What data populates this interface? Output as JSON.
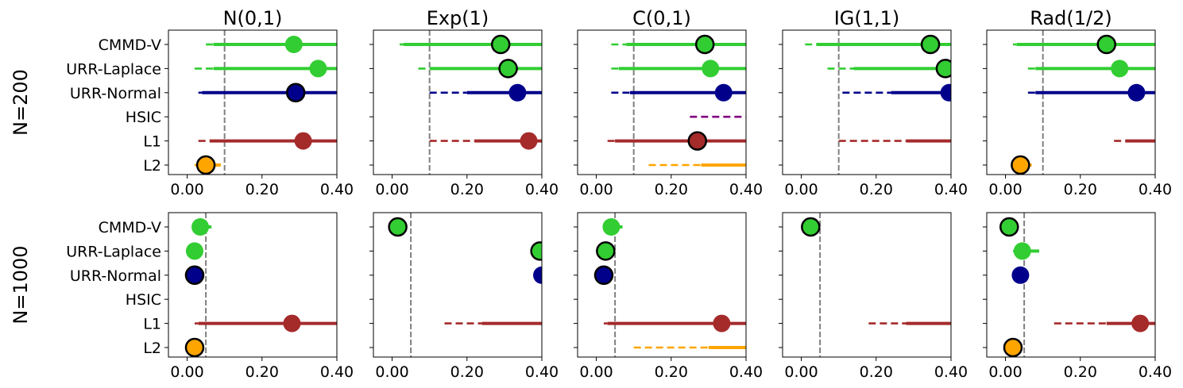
{
  "chart_data": {
    "type": "scatter",
    "layout": "grid 2 rows x 5 columns, shared x axis range per panel",
    "column_titles": [
      "N(0,1)",
      "Exp(1)",
      "C(0,1)",
      "IG(1,1)",
      "Rad(1/2)"
    ],
    "row_labels": [
      "N=200",
      "N=1000"
    ],
    "methods": [
      "CMMD-V",
      "URR-Laplace",
      "URR-Normal",
      "HSIC",
      "L1",
      "L2"
    ],
    "colors": {
      "CMMD-V": "#32cd32",
      "URR-Laplace": "#32cd32",
      "URR-Normal": "#00008b",
      "HSIC": "#800080",
      "L1": "#a52a2a",
      "L2": "#ffa500",
      "reference_line": "#808080"
    },
    "xlim": [
      -0.05,
      0.4
    ],
    "xticks": [
      "0.00",
      "0.20",
      "0.40"
    ],
    "xtick_values": [
      0.0,
      0.2,
      0.4
    ],
    "reference_lines": {
      "N=200": 0.1,
      "N=1000": 0.05
    },
    "encoding": "circle = point estimate (black outline = marked), solid line = inner interval, dashed line = outer interval",
    "panels": [
      {
        "row": "N=200",
        "column": "N(0,1)",
        "estimates": [
          {
            "method": "CMMD-V",
            "value": 0.285,
            "outlined": false,
            "dashed": [
              0.05,
              0.07
            ],
            "solid": [
              0.07,
              0.4
            ]
          },
          {
            "method": "URR-Laplace",
            "value": 0.35,
            "outlined": false,
            "dashed": [
              0.02,
              0.07
            ],
            "solid": [
              0.07,
              0.4
            ]
          },
          {
            "method": "URR-Normal",
            "value": 0.29,
            "outlined": true,
            "dashed": [
              0.03,
              0.04
            ],
            "solid": [
              0.04,
              0.4
            ]
          },
          {
            "method": "L1",
            "value": 0.31,
            "outlined": false,
            "dashed": [
              0.03,
              0.06
            ],
            "solid": [
              0.06,
              0.4
            ]
          },
          {
            "method": "L2",
            "value": 0.05,
            "outlined": true,
            "dashed": [
              0.02,
              0.03
            ],
            "solid": [
              0.03,
              0.09
            ]
          }
        ]
      },
      {
        "row": "N=200",
        "column": "Exp(1)",
        "estimates": [
          {
            "method": "CMMD-V",
            "value": 0.29,
            "outlined": true,
            "dashed": [
              0.02,
              0.03
            ],
            "solid": [
              0.03,
              0.4
            ]
          },
          {
            "method": "URR-Laplace",
            "value": 0.31,
            "outlined": true,
            "dashed": [
              0.07,
              0.1
            ],
            "solid": [
              0.1,
              0.4
            ]
          },
          {
            "method": "URR-Normal",
            "value": 0.335,
            "outlined": false,
            "dashed": [
              0.1,
              0.2
            ],
            "solid": [
              0.2,
              0.4
            ]
          },
          {
            "method": "L1",
            "value": 0.365,
            "outlined": false,
            "dashed": [
              0.1,
              0.22
            ],
            "solid": [
              0.22,
              0.4
            ]
          }
        ]
      },
      {
        "row": "N=200",
        "column": "C(0,1)",
        "estimates": [
          {
            "method": "CMMD-V",
            "value": 0.29,
            "outlined": true,
            "dashed": [
              0.04,
              0.08
            ],
            "solid": [
              0.08,
              0.4
            ]
          },
          {
            "method": "URR-Laplace",
            "value": 0.305,
            "outlined": false,
            "dashed": [
              0.04,
              0.06
            ],
            "solid": [
              0.06,
              0.4
            ]
          },
          {
            "method": "URR-Normal",
            "value": 0.34,
            "outlined": false,
            "dashed": [
              0.04,
              0.09
            ],
            "solid": [
              0.09,
              0.4
            ]
          },
          {
            "method": "HSIC",
            "value": null,
            "outlined": false,
            "dashed": [
              0.25,
              0.4
            ],
            "solid": null
          },
          {
            "method": "L1",
            "value": 0.27,
            "outlined": true,
            "dashed": [
              0.03,
              0.05
            ],
            "solid": [
              0.05,
              0.4
            ]
          },
          {
            "method": "L2",
            "value": null,
            "outlined": false,
            "dashed": [
              0.14,
              0.28
            ],
            "solid": [
              0.28,
              0.4
            ]
          }
        ]
      },
      {
        "row": "N=200",
        "column": "IG(1,1)",
        "estimates": [
          {
            "method": "CMMD-V",
            "value": 0.345,
            "outlined": true,
            "dashed": [
              0.01,
              0.04
            ],
            "solid": [
              0.04,
              0.4
            ]
          },
          {
            "method": "URR-Laplace",
            "value": 0.385,
            "outlined": true,
            "dashed": [
              0.07,
              0.14
            ],
            "solid": [
              0.14,
              0.4
            ]
          },
          {
            "method": "URR-Normal",
            "value": 0.395,
            "outlined": false,
            "dashed": [
              0.11,
              0.24
            ],
            "solid": [
              0.24,
              0.4
            ]
          },
          {
            "method": "L1",
            "value": null,
            "outlined": false,
            "dashed": [
              0.1,
              0.28
            ],
            "solid": [
              0.28,
              0.4
            ]
          }
        ]
      },
      {
        "row": "N=200",
        "column": "Rad(1/2)",
        "estimates": [
          {
            "method": "CMMD-V",
            "value": 0.27,
            "outlined": true,
            "dashed": [
              0.02,
              0.03
            ],
            "solid": [
              0.03,
              0.4
            ]
          },
          {
            "method": "URR-Laplace",
            "value": 0.305,
            "outlined": false,
            "dashed": [
              0.06,
              0.08
            ],
            "solid": [
              0.08,
              0.4
            ]
          },
          {
            "method": "URR-Normal",
            "value": 0.35,
            "outlined": false,
            "dashed": [
              0.06,
              0.08
            ],
            "solid": [
              0.08,
              0.4
            ]
          },
          {
            "method": "L1",
            "value": null,
            "outlined": false,
            "dashed": [
              0.29,
              0.32
            ],
            "solid": [
              0.32,
              0.4
            ]
          },
          {
            "method": "L2",
            "value": 0.04,
            "outlined": true,
            "dashed": [
              0.02,
              0.03
            ],
            "solid": [
              0.03,
              0.07
            ]
          }
        ]
      },
      {
        "row": "N=1000",
        "column": "N(0,1)",
        "estimates": [
          {
            "method": "CMMD-V",
            "value": 0.035,
            "outlined": false,
            "dashed": [
              0.04,
              0.05
            ],
            "solid": [
              0.05,
              0.065
            ]
          },
          {
            "method": "URR-Laplace",
            "value": 0.02,
            "outlined": false,
            "dashed": null,
            "solid": null
          },
          {
            "method": "URR-Normal",
            "value": 0.02,
            "outlined": true,
            "dashed": null,
            "solid": null
          },
          {
            "method": "L1",
            "value": 0.28,
            "outlined": false,
            "dashed": [
              0.02,
              0.03
            ],
            "solid": [
              0.03,
              0.4
            ]
          },
          {
            "method": "L2",
            "value": 0.02,
            "outlined": true,
            "dashed": null,
            "solid": null
          }
        ]
      },
      {
        "row": "N=1000",
        "column": "Exp(1)",
        "estimates": [
          {
            "method": "CMMD-V",
            "value": 0.015,
            "outlined": true,
            "dashed": null,
            "solid": null
          },
          {
            "method": "URR-Laplace",
            "value": 0.395,
            "outlined": true,
            "dashed": null,
            "solid": null
          },
          {
            "method": "URR-Normal",
            "value": 0.4,
            "outlined": false,
            "dashed": null,
            "solid": null
          },
          {
            "method": "L1",
            "value": null,
            "outlined": false,
            "dashed": [
              0.14,
              0.24
            ],
            "solid": [
              0.24,
              0.4
            ]
          }
        ]
      },
      {
        "row": "N=1000",
        "column": "C(0,1)",
        "estimates": [
          {
            "method": "CMMD-V",
            "value": 0.04,
            "outlined": false,
            "dashed": [
              0.05,
              0.06
            ],
            "solid": [
              0.06,
              0.07
            ]
          },
          {
            "method": "URR-Laplace",
            "value": 0.025,
            "outlined": true,
            "dashed": null,
            "solid": null
          },
          {
            "method": "URR-Normal",
            "value": 0.02,
            "outlined": true,
            "dashed": null,
            "solid": null
          },
          {
            "method": "L1",
            "value": 0.335,
            "outlined": false,
            "dashed": [
              0.02,
              0.03
            ],
            "solid": [
              0.03,
              0.4
            ]
          },
          {
            "method": "L2",
            "value": null,
            "outlined": false,
            "dashed": [
              0.1,
              0.3
            ],
            "solid": [
              0.3,
              0.4
            ]
          }
        ]
      },
      {
        "row": "N=1000",
        "column": "IG(1,1)",
        "estimates": [
          {
            "method": "CMMD-V",
            "value": 0.025,
            "outlined": true,
            "dashed": null,
            "solid": null
          },
          {
            "method": "L1",
            "value": null,
            "outlined": false,
            "dashed": [
              0.18,
              0.28
            ],
            "solid": [
              0.28,
              0.4
            ]
          }
        ]
      },
      {
        "row": "N=1000",
        "column": "Rad(1/2)",
        "estimates": [
          {
            "method": "CMMD-V",
            "value": 0.01,
            "outlined": true,
            "dashed": null,
            "solid": null
          },
          {
            "method": "URR-Laplace",
            "value": 0.045,
            "outlined": false,
            "dashed": [
              0.02,
              0.06
            ],
            "solid": [
              0.06,
              0.09
            ]
          },
          {
            "method": "URR-Normal",
            "value": 0.04,
            "outlined": false,
            "dashed": [
              0.05,
              0.055
            ],
            "solid": [
              0.055,
              0.06
            ]
          },
          {
            "method": "L1",
            "value": 0.36,
            "outlined": false,
            "dashed": [
              0.13,
              0.27
            ],
            "solid": [
              0.27,
              0.4
            ]
          },
          {
            "method": "L2",
            "value": 0.02,
            "outlined": true,
            "dashed": null,
            "solid": null
          }
        ]
      }
    ]
  }
}
